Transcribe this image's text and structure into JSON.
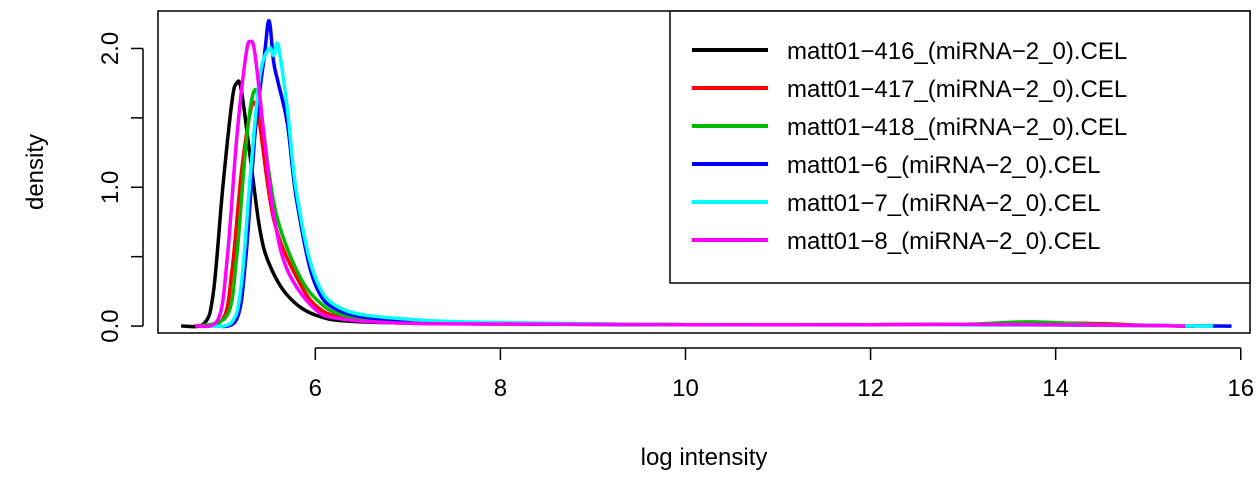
{
  "chart_data": {
    "type": "line",
    "title": "",
    "xlabel": "log intensity",
    "ylabel": "density",
    "xlim": [
      4.3,
      16.1
    ],
    "ylim": [
      -0.05,
      2.27
    ],
    "x_ticks": [
      6,
      8,
      10,
      12,
      14,
      16
    ],
    "x_tick_labels": [
      "6",
      "8",
      "10",
      "12",
      "14",
      "16"
    ],
    "y_ticks": [
      0.0,
      0.5,
      1.0,
      1.5,
      2.0
    ],
    "y_tick_labels": [
      "0.0",
      "",
      "1.0",
      "",
      "2.0"
    ],
    "grid": false,
    "legend_position": "top-right",
    "series": [
      {
        "name": "matt01−416_(miRNA−2_0).CEL",
        "color": "#000000",
        "x": [
          4.55,
          4.8,
          4.9,
          5.0,
          5.1,
          5.15,
          5.2,
          5.3,
          5.4,
          5.5,
          5.7,
          6.0,
          6.5,
          8,
          10,
          12,
          13,
          14,
          15,
          15.4
        ],
        "y": [
          0,
          0.02,
          0.25,
          1.0,
          1.62,
          1.75,
          1.7,
          1.2,
          0.7,
          0.45,
          0.22,
          0.08,
          0.03,
          0.015,
          0.01,
          0.01,
          0.012,
          0.01,
          0.005,
          0
        ]
      },
      {
        "name": "matt01−417_(miRNA−2_0).CEL",
        "color": "#ff0000",
        "x": [
          4.7,
          5.0,
          5.1,
          5.2,
          5.3,
          5.35,
          5.4,
          5.5,
          5.6,
          5.8,
          6.0,
          6.3,
          7,
          8,
          10,
          12,
          13,
          14.2,
          15,
          15.5
        ],
        "y": [
          0,
          0.05,
          0.4,
          1.1,
          1.55,
          1.6,
          1.45,
          0.95,
          0.65,
          0.35,
          0.15,
          0.06,
          0.03,
          0.02,
          0.01,
          0.01,
          0.012,
          0.02,
          0.005,
          0
        ]
      },
      {
        "name": "matt01−418_(miRNA−2_0).CEL",
        "color": "#00bb00",
        "x": [
          4.75,
          5.05,
          5.15,
          5.25,
          5.33,
          5.4,
          5.5,
          5.6,
          5.8,
          6.0,
          6.3,
          7,
          8,
          10,
          12,
          13,
          13.7,
          14.5,
          15.5
        ],
        "y": [
          0,
          0.08,
          0.5,
          1.3,
          1.68,
          1.6,
          1.1,
          0.75,
          0.4,
          0.2,
          0.08,
          0.04,
          0.02,
          0.01,
          0.01,
          0.012,
          0.03,
          0.01,
          0
        ]
      },
      {
        "name": "matt01−6_(miRNA−2_0).CEL",
        "color": "#0000ff",
        "x": [
          4.9,
          5.15,
          5.25,
          5.35,
          5.45,
          5.5,
          5.55,
          5.6,
          5.7,
          5.8,
          6.0,
          6.3,
          7,
          8,
          10,
          12,
          14,
          15,
          15.9
        ],
        "y": [
          0,
          0.05,
          0.5,
          1.4,
          1.95,
          2.2,
          1.9,
          1.75,
          1.45,
          0.9,
          0.3,
          0.1,
          0.04,
          0.02,
          0.01,
          0.01,
          0.008,
          0.004,
          0
        ]
      },
      {
        "name": "matt01−7_(miRNA−2_0).CEL",
        "color": "#00ffff",
        "x": [
          4.85,
          5.1,
          5.2,
          5.3,
          5.4,
          5.5,
          5.55,
          5.6,
          5.7,
          5.8,
          6.0,
          6.3,
          7,
          8,
          10,
          12,
          14,
          15,
          15.7
        ],
        "y": [
          0,
          0.03,
          0.3,
          1.1,
          1.8,
          2.0,
          1.95,
          2.02,
          1.55,
          0.95,
          0.35,
          0.12,
          0.05,
          0.025,
          0.01,
          0.01,
          0.008,
          0.004,
          0
        ]
      },
      {
        "name": "matt01−8_(miRNA−2_0).CEL",
        "color": "#ff00ff",
        "x": [
          4.7,
          4.95,
          5.05,
          5.15,
          5.25,
          5.3,
          5.35,
          5.45,
          5.55,
          5.7,
          6.0,
          6.3,
          7,
          8,
          10,
          12,
          13,
          14,
          15,
          15.4
        ],
        "y": [
          0,
          0.05,
          0.5,
          1.35,
          1.95,
          2.05,
          1.95,
          1.35,
          0.8,
          0.4,
          0.12,
          0.05,
          0.02,
          0.015,
          0.01,
          0.01,
          0.012,
          0.01,
          0.004,
          0
        ]
      }
    ]
  }
}
